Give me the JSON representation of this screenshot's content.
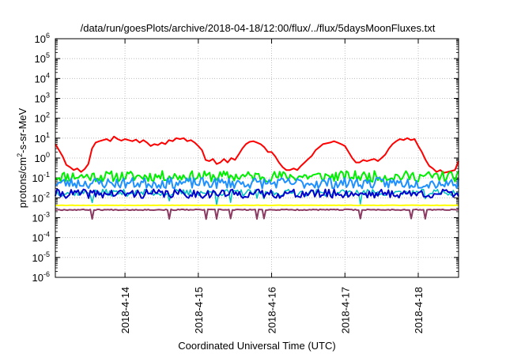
{
  "chart_data": {
    "type": "line",
    "title": "/data/run/goesPlots/archive/2018-04-18/12:00/flux/../flux/5daysMoonFluxes.txt",
    "xlabel": "Coordinated Universal Time (UTC)",
    "ylabel": {
      "base": "protons/cm",
      "sup": "2",
      "rest": "-s-sr-MeV"
    },
    "yscale": "log",
    "ylim_exp": [
      -6,
      6
    ],
    "y_tick_exponents": [
      -6,
      -5,
      -4,
      -3,
      -2,
      -1,
      0,
      1,
      2,
      3,
      4,
      5,
      6
    ],
    "y_tick_base": "10",
    "xlim_days": [
      13.05,
      18.55
    ],
    "x_ticks": [
      {
        "day": 14,
        "label": "2018-4-14"
      },
      {
        "day": 15,
        "label": "2018-4-15"
      },
      {
        "day": 16,
        "label": "2018-4-16"
      },
      {
        "day": 17,
        "label": "2018-4-17"
      },
      {
        "day": 18,
        "label": "2018-4-18"
      }
    ],
    "grid": true,
    "legend": "none",
    "series": [
      {
        "color": "#ff0000",
        "line_width": 2,
        "points": [
          [
            13.05,
            5
          ],
          [
            13.1,
            2.5
          ],
          [
            13.15,
            1.2
          ],
          [
            13.2,
            0.45
          ],
          [
            13.25,
            0.35
          ],
          [
            13.3,
            0.25
          ],
          [
            13.35,
            0.3
          ],
          [
            13.4,
            0.2
          ],
          [
            13.45,
            0.28
          ],
          [
            13.5,
            0.5
          ],
          [
            13.55,
            3
          ],
          [
            13.6,
            6
          ],
          [
            13.65,
            7
          ],
          [
            13.7,
            8
          ],
          [
            13.75,
            9
          ],
          [
            13.8,
            7
          ],
          [
            13.85,
            12
          ],
          [
            13.9,
            9
          ],
          [
            13.95,
            7.5
          ],
          [
            14.0,
            9
          ],
          [
            14.05,
            8
          ],
          [
            14.1,
            7
          ],
          [
            14.15,
            8.5
          ],
          [
            14.2,
            6
          ],
          [
            14.25,
            8
          ],
          [
            14.3,
            6
          ],
          [
            14.35,
            4
          ],
          [
            14.4,
            5
          ],
          [
            14.45,
            4.5
          ],
          [
            14.5,
            6
          ],
          [
            14.55,
            5
          ],
          [
            14.6,
            8
          ],
          [
            14.65,
            7
          ],
          [
            14.7,
            10
          ],
          [
            14.75,
            9
          ],
          [
            14.8,
            10
          ],
          [
            14.85,
            7
          ],
          [
            14.9,
            8
          ],
          [
            14.95,
            6
          ],
          [
            15.0,
            4
          ],
          [
            15.05,
            2.5
          ],
          [
            15.1,
            0.8
          ],
          [
            15.15,
            0.7
          ],
          [
            15.2,
            0.9
          ],
          [
            15.25,
            0.5
          ],
          [
            15.3,
            0.6
          ],
          [
            15.35,
            0.9
          ],
          [
            15.4,
            0.6
          ],
          [
            15.45,
            1
          ],
          [
            15.5,
            0.8
          ],
          [
            15.55,
            1.5
          ],
          [
            15.6,
            3
          ],
          [
            15.65,
            5
          ],
          [
            15.7,
            6.5
          ],
          [
            15.75,
            7
          ],
          [
            15.8,
            6
          ],
          [
            15.85,
            5
          ],
          [
            15.9,
            3.5
          ],
          [
            15.95,
            2
          ],
          [
            16.0,
            2
          ],
          [
            16.05,
            1.2
          ],
          [
            16.1,
            0.6
          ],
          [
            16.15,
            0.35
          ],
          [
            16.2,
            0.25
          ],
          [
            16.25,
            0.25
          ],
          [
            16.3,
            0.3
          ],
          [
            16.35,
            0.25
          ],
          [
            16.4,
            0.4
          ],
          [
            16.45,
            0.6
          ],
          [
            16.5,
            0.9
          ],
          [
            16.55,
            1.3
          ],
          [
            16.6,
            2.5
          ],
          [
            16.65,
            3.5
          ],
          [
            16.7,
            5
          ],
          [
            16.75,
            5.5
          ],
          [
            16.8,
            6
          ],
          [
            16.85,
            7
          ],
          [
            16.9,
            6
          ],
          [
            16.95,
            5
          ],
          [
            17.0,
            4
          ],
          [
            17.05,
            2
          ],
          [
            17.1,
            1
          ],
          [
            17.15,
            0.6
          ],
          [
            17.2,
            0.6
          ],
          [
            17.25,
            0.8
          ],
          [
            17.3,
            0.7
          ],
          [
            17.35,
            0.8
          ],
          [
            17.4,
            0.9
          ],
          [
            17.45,
            0.7
          ],
          [
            17.5,
            1
          ],
          [
            17.55,
            1.5
          ],
          [
            17.6,
            3
          ],
          [
            17.65,
            5
          ],
          [
            17.7,
            7
          ],
          [
            17.75,
            9
          ],
          [
            17.8,
            8
          ],
          [
            17.85,
            10
          ],
          [
            17.9,
            8
          ],
          [
            17.95,
            9
          ],
          [
            18.0,
            4
          ],
          [
            18.05,
            2
          ],
          [
            18.1,
            0.8
          ],
          [
            18.15,
            0.4
          ],
          [
            18.2,
            0.3
          ],
          [
            18.25,
            0.2
          ],
          [
            18.3,
            0.25
          ],
          [
            18.35,
            0.18
          ],
          [
            18.4,
            0.2
          ],
          [
            18.45,
            0.22
          ],
          [
            18.5,
            0.25
          ],
          [
            18.55,
            0.7
          ]
        ]
      },
      {
        "color": "#00ee00",
        "line_width": 2,
        "base": 0.12,
        "spread": 0.55,
        "dips": [],
        "seed": 11
      },
      {
        "color": "#1e90ff",
        "line_width": 2,
        "base": 0.055,
        "spread": 0.55,
        "dips": [],
        "seed": 23
      },
      {
        "color": "#00bfbf",
        "line_width": 1.5,
        "base": 0.018,
        "spread": 0.35,
        "dips": [
          13.55,
          14.6,
          15.25,
          15.45,
          15.8,
          15.9,
          17.2,
          18.1
        ],
        "seed": 37
      },
      {
        "color": "#0000cd",
        "line_width": 2,
        "base": 0.016,
        "spread": 0.45,
        "dips": [],
        "seed": 41
      },
      {
        "color": "#ffff00",
        "line_width": 2,
        "base": 0.0042,
        "spread": 0.02,
        "dips": [],
        "seed": 53
      },
      {
        "color": "#8b3a62",
        "line_width": 2,
        "base": 0.0025,
        "spread": 0.05,
        "dips": [
          13.55,
          14.6,
          15.1,
          15.25,
          15.45,
          15.8,
          15.9,
          17.2,
          17.9,
          18.1
        ],
        "seed": 67
      }
    ]
  }
}
